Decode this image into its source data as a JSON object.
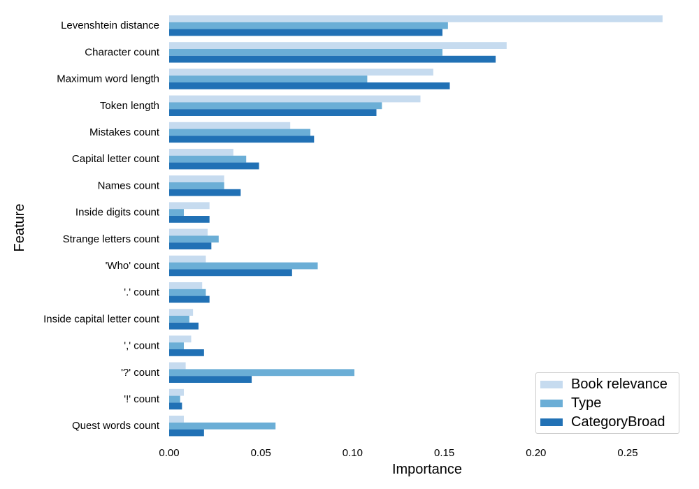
{
  "chart_data": {
    "type": "bar",
    "orientation": "horizontal",
    "xlabel": "Importance",
    "ylabel": "Feature",
    "xlim": [
      0,
      0.28
    ],
    "xticks": [
      0.0,
      0.05,
      0.1,
      0.15,
      0.2,
      0.25
    ],
    "xtick_labels": [
      "0.00",
      "0.05",
      "0.10",
      "0.15",
      "0.20",
      "0.25"
    ],
    "grid": false,
    "legend_position": "bottom-right",
    "categories": [
      "Levenshtein distance",
      "Character count",
      "Maximum word length",
      "Token length",
      "Mistakes count",
      "Capital letter count",
      "Names count",
      "Inside digits count",
      "Strange letters count",
      "'Who' count",
      "'.' count",
      "Inside capital letter count",
      "',' count",
      "'?' count",
      "'!' count",
      "Quest words count"
    ],
    "series": [
      {
        "name": "Book relevance",
        "color": "#c6dbef",
        "values": [
          0.269,
          0.184,
          0.144,
          0.137,
          0.066,
          0.035,
          0.03,
          0.022,
          0.021,
          0.02,
          0.018,
          0.013,
          0.012,
          0.009,
          0.008,
          0.008
        ]
      },
      {
        "name": "Type",
        "color": "#6baed6",
        "values": [
          0.152,
          0.149,
          0.108,
          0.116,
          0.077,
          0.042,
          0.03,
          0.008,
          0.027,
          0.081,
          0.02,
          0.011,
          0.008,
          0.101,
          0.006,
          0.058
        ]
      },
      {
        "name": "CategoryBroad",
        "color": "#2171b5",
        "values": [
          0.149,
          0.178,
          0.153,
          0.113,
          0.079,
          0.049,
          0.039,
          0.022,
          0.023,
          0.067,
          0.022,
          0.016,
          0.019,
          0.045,
          0.007,
          0.019
        ]
      }
    ]
  }
}
